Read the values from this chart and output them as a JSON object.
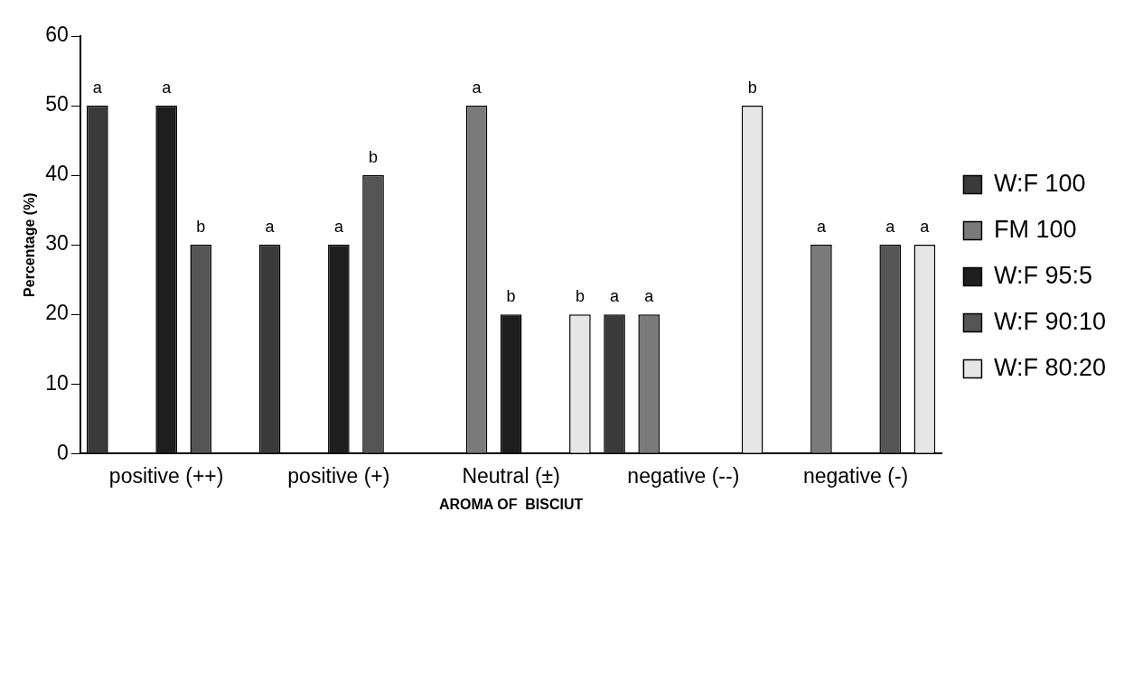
{
  "chart_data": {
    "type": "bar",
    "xlabel": "AROMA OF  BISCIUT",
    "ylabel": "Percentage (%)",
    "categories": [
      "positive (++)",
      "positive (+)",
      "Neutral (±)",
      "negative (--)",
      "negative (-)"
    ],
    "series": [
      {
        "name": "W:F 100",
        "color": "#3a3a3a",
        "values": [
          50,
          30,
          0,
          20,
          0
        ],
        "value_labels": [
          "a",
          "a",
          null,
          "a",
          null
        ]
      },
      {
        "name": "FM 100",
        "color": "#7a7a7a",
        "values": [
          0,
          0,
          50,
          20,
          30
        ],
        "value_labels": [
          null,
          null,
          "a",
          "a",
          "a"
        ]
      },
      {
        "name": "W:F 95:5",
        "color": "#1e1e1e",
        "values": [
          50,
          30,
          20,
          0,
          0
        ],
        "value_labels": [
          "a",
          "a",
          "b",
          null,
          null
        ]
      },
      {
        "name": "W:F 90:10",
        "color": "#555555",
        "values": [
          30,
          40,
          0,
          0,
          30
        ],
        "value_labels": [
          "b",
          "b",
          null,
          null,
          "a"
        ]
      },
      {
        "name": "W:F 80:20",
        "color": "#e6e6e6",
        "values": [
          0,
          0,
          20,
          50,
          30
        ],
        "value_labels": [
          null,
          null,
          "b",
          "b",
          "a"
        ]
      }
    ],
    "ylim": [
      0,
      60
    ],
    "yticks": [
      0,
      10,
      20,
      30,
      40,
      50,
      60
    ],
    "grid": false,
    "legend": "right"
  }
}
